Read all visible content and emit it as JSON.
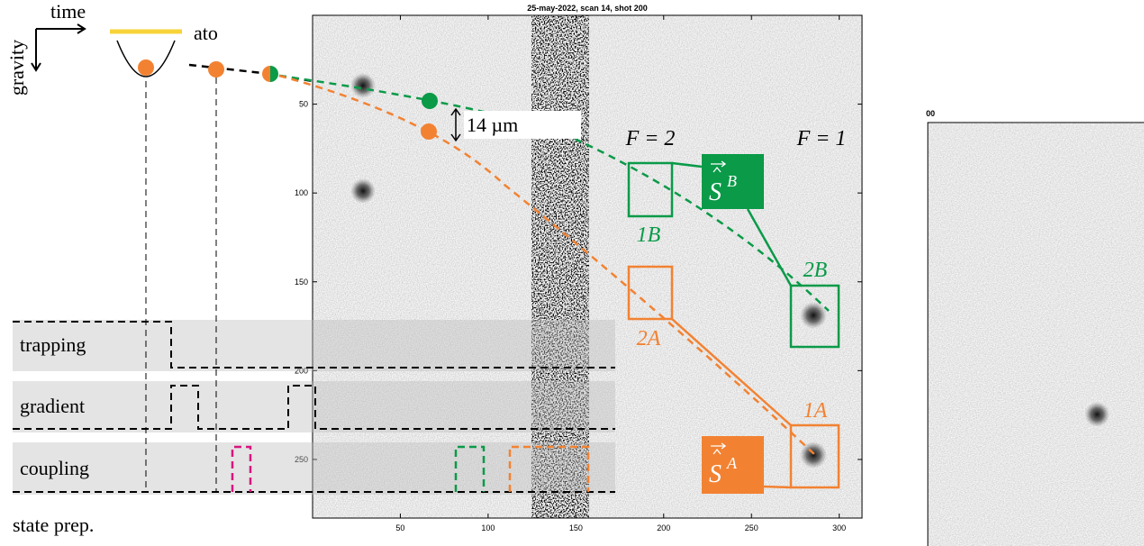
{
  "figure": {
    "image_title": "25-may-2022, scan 14, shot 200",
    "xlim": [
      0,
      313
    ],
    "ylim": [
      0,
      283
    ],
    "xticks": [
      50,
      100,
      150,
      200,
      250,
      300
    ],
    "yticks": [
      50,
      100,
      150,
      200,
      250
    ],
    "right_panel_label": "00",
    "time": "time",
    "gravity": "gravity",
    "atoms": "ato",
    "distance": "14 µm",
    "f2": "F = 2",
    "f1": "F = 1",
    "box_1b": "1B",
    "box_2b": "2B",
    "box_2a": "2A",
    "box_1a": "1A",
    "spin_b": {
      "symbol": "S",
      "superscript": "B"
    },
    "spin_a": {
      "symbol": "S",
      "superscript": "A"
    },
    "rows": [
      "trapping",
      "gradient",
      "coupling"
    ],
    "state_prep": "state prep."
  }
}
